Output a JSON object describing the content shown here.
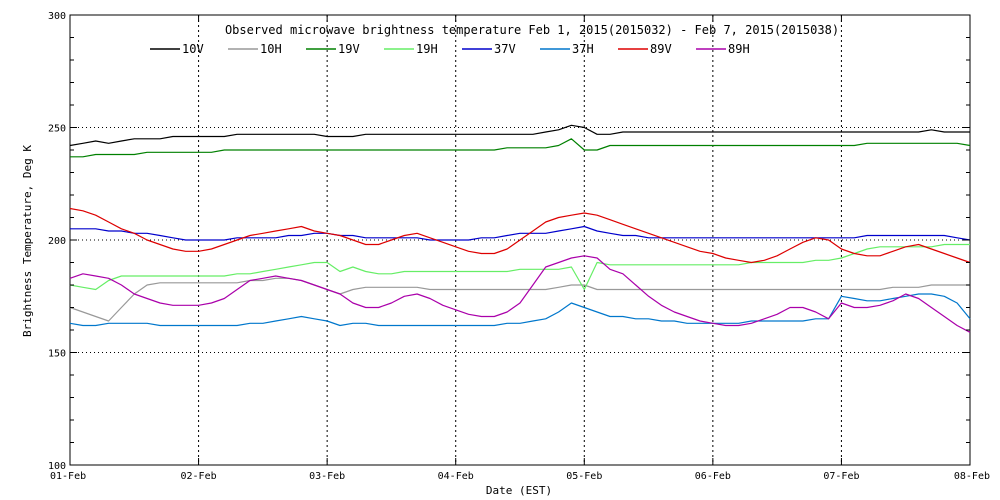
{
  "chart_data": {
    "type": "line",
    "title": "Observed microwave brightness temperature Feb  1, 2015(2015032) - Feb  7, 2015(2015038)",
    "xlabel": "Date (EST)",
    "ylabel": "Brightness Temperature, Deg K",
    "ylim": [
      100,
      300
    ],
    "xlim": [
      0,
      7
    ],
    "grid": "dotted lines at y=150,200,250 and at each day",
    "legend_placement": "top",
    "y_ticks": [
      "100",
      "150",
      "200",
      "250",
      "300"
    ],
    "x_ticks": [
      "01-Feb",
      "02-Feb",
      "03-Feb",
      "04-Feb",
      "05-Feb",
      "06-Feb",
      "07-Feb",
      "08-Feb"
    ],
    "x": [
      0.0,
      0.1,
      0.2,
      0.3,
      0.4,
      0.5,
      0.6,
      0.7,
      0.8,
      0.9,
      1.0,
      1.1,
      1.2,
      1.3,
      1.4,
      1.5,
      1.6,
      1.7,
      1.8,
      1.9,
      2.0,
      2.1,
      2.2,
      2.3,
      2.4,
      2.5,
      2.6,
      2.7,
      2.8,
      2.9,
      3.0,
      3.1,
      3.2,
      3.3,
      3.4,
      3.5,
      3.6,
      3.7,
      3.8,
      3.9,
      4.0,
      4.1,
      4.2,
      4.3,
      4.4,
      4.5,
      4.6,
      4.7,
      4.8,
      4.9,
      5.0,
      5.1,
      5.2,
      5.3,
      5.4,
      5.5,
      5.6,
      5.7,
      5.8,
      5.9,
      6.0,
      6.1,
      6.2,
      6.3,
      6.4,
      6.5,
      6.6,
      6.7,
      6.8,
      6.9,
      7.0
    ],
    "series": [
      {
        "name": "10V",
        "color": "#000000",
        "values": [
          242,
          243,
          244,
          243,
          244,
          245,
          245,
          245,
          246,
          246,
          246,
          246,
          246,
          247,
          247,
          247,
          247,
          247,
          247,
          247,
          246,
          246,
          246,
          247,
          247,
          247,
          247,
          247,
          247,
          247,
          247,
          247,
          247,
          247,
          247,
          247,
          247,
          248,
          249,
          251,
          250,
          247,
          247,
          248,
          248,
          248,
          248,
          248,
          248,
          248,
          248,
          248,
          248,
          248,
          248,
          248,
          248,
          248,
          248,
          248,
          248,
          248,
          248,
          248,
          248,
          248,
          248,
          249,
          248,
          248,
          248
        ]
      },
      {
        "name": "10H",
        "color": "#999999",
        "values": [
          170,
          168,
          166,
          164,
          170,
          176,
          180,
          181,
          181,
          181,
          181,
          181,
          181,
          181,
          182,
          182,
          183,
          183,
          182,
          180,
          178,
          176,
          178,
          179,
          179,
          179,
          179,
          179,
          178,
          178,
          178,
          178,
          178,
          178,
          178,
          178,
          178,
          178,
          179,
          180,
          180,
          178,
          178,
          178,
          178,
          178,
          178,
          178,
          178,
          178,
          178,
          178,
          178,
          178,
          178,
          178,
          178,
          178,
          178,
          178,
          178,
          178,
          178,
          178,
          179,
          179,
          179,
          180,
          180,
          180,
          180
        ]
      },
      {
        "name": "19V",
        "color": "#008000",
        "values": [
          237,
          237,
          238,
          238,
          238,
          238,
          239,
          239,
          239,
          239,
          239,
          239,
          240,
          240,
          240,
          240,
          240,
          240,
          240,
          240,
          240,
          240,
          240,
          240,
          240,
          240,
          240,
          240,
          240,
          240,
          240,
          240,
          240,
          240,
          241,
          241,
          241,
          241,
          242,
          245,
          240,
          240,
          242,
          242,
          242,
          242,
          242,
          242,
          242,
          242,
          242,
          242,
          242,
          242,
          242,
          242,
          242,
          242,
          242,
          242,
          242,
          242,
          243,
          243,
          243,
          243,
          243,
          243,
          243,
          243,
          242
        ]
      },
      {
        "name": "19H",
        "color": "#66ee66",
        "values": [
          180,
          179,
          178,
          182,
          184,
          184,
          184,
          184,
          184,
          184,
          184,
          184,
          184,
          185,
          185,
          186,
          187,
          188,
          189,
          190,
          190,
          186,
          188,
          186,
          185,
          185,
          186,
          186,
          186,
          186,
          186,
          186,
          186,
          186,
          186,
          187,
          187,
          187,
          187,
          188,
          178,
          190,
          189,
          189,
          189,
          189,
          189,
          189,
          189,
          189,
          189,
          189,
          189,
          190,
          190,
          190,
          190,
          190,
          191,
          191,
          192,
          194,
          196,
          197,
          197,
          197,
          197,
          197,
          198,
          198,
          198
        ]
      },
      {
        "name": "37V",
        "color": "#0000cc",
        "values": [
          205,
          205,
          205,
          204,
          204,
          203,
          203,
          202,
          201,
          200,
          200,
          200,
          200,
          201,
          201,
          201,
          201,
          202,
          202,
          203,
          203,
          202,
          202,
          201,
          201,
          201,
          201,
          201,
          200,
          200,
          200,
          200,
          201,
          201,
          202,
          203,
          203,
          203,
          204,
          205,
          206,
          204,
          203,
          202,
          202,
          201,
          201,
          201,
          201,
          201,
          201,
          201,
          201,
          201,
          201,
          201,
          201,
          201,
          201,
          201,
          201,
          201,
          202,
          202,
          202,
          202,
          202,
          202,
          202,
          201,
          200
        ]
      },
      {
        "name": "37H",
        "color": "#0077cc",
        "values": [
          163,
          162,
          162,
          163,
          163,
          163,
          163,
          162,
          162,
          162,
          162,
          162,
          162,
          162,
          163,
          163,
          164,
          165,
          166,
          165,
          164,
          162,
          163,
          163,
          162,
          162,
          162,
          162,
          162,
          162,
          162,
          162,
          162,
          162,
          163,
          163,
          164,
          165,
          168,
          172,
          170,
          168,
          166,
          166,
          165,
          165,
          164,
          164,
          163,
          163,
          163,
          163,
          163,
          164,
          164,
          164,
          164,
          164,
          165,
          165,
          175,
          174,
          173,
          173,
          174,
          175,
          176,
          176,
          175,
          172,
          165
        ]
      },
      {
        "name": "89V",
        "color": "#dd0000",
        "values": [
          214,
          213,
          211,
          208,
          205,
          203,
          200,
          198,
          196,
          195,
          195,
          196,
          198,
          200,
          202,
          203,
          204,
          205,
          206,
          204,
          203,
          202,
          200,
          198,
          198,
          200,
          202,
          203,
          201,
          199,
          197,
          195,
          194,
          194,
          196,
          200,
          204,
          208,
          210,
          211,
          212,
          211,
          209,
          207,
          205,
          203,
          201,
          199,
          197,
          195,
          194,
          192,
          191,
          190,
          191,
          193,
          196,
          199,
          201,
          200,
          196,
          194,
          193,
          193,
          195,
          197,
          198,
          196,
          194,
          192,
          190
        ]
      },
      {
        "name": "89H",
        "color": "#aa00aa",
        "values": [
          183,
          185,
          184,
          183,
          180,
          176,
          174,
          172,
          171,
          171,
          171,
          172,
          174,
          178,
          182,
          183,
          184,
          183,
          182,
          180,
          178,
          176,
          172,
          170,
          170,
          172,
          175,
          176,
          174,
          171,
          169,
          167,
          166,
          166,
          168,
          172,
          180,
          188,
          190,
          192,
          193,
          192,
          187,
          185,
          180,
          175,
          171,
          168,
          166,
          164,
          163,
          162,
          162,
          163,
          165,
          167,
          170,
          170,
          168,
          165,
          172,
          170,
          170,
          171,
          173,
          176,
          174,
          170,
          166,
          162,
          159
        ]
      }
    ]
  }
}
